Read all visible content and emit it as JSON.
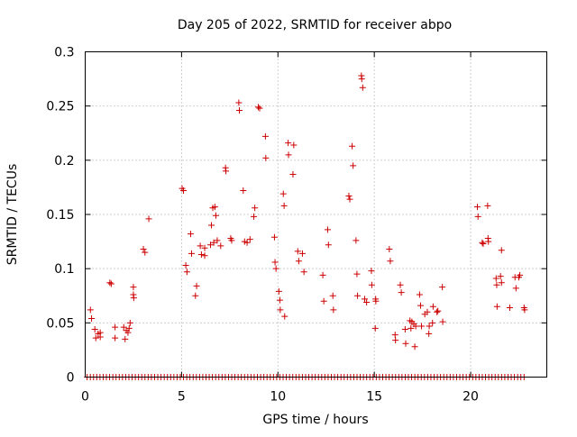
{
  "chart_data": {
    "type": "scatter",
    "title": "Day 205 of 2022, SRMTID for receiver abpo",
    "xlabel": "GPS time / hours",
    "ylabel": "SRMTID / TECUs",
    "xlim": [
      0,
      23.95
    ],
    "ylim": [
      0,
      0.3
    ],
    "xticks": [
      0,
      5,
      10,
      15,
      20
    ],
    "xtick_labels": [
      "0",
      "5",
      "10",
      "15",
      "20"
    ],
    "yticks": [
      0,
      0.05,
      0.1,
      0.15,
      0.2,
      0.25,
      0.3
    ],
    "ytick_labels": [
      "0",
      "0.05",
      "0.1",
      "0.15",
      "0.2",
      "0.25",
      "0.3"
    ],
    "grid": true,
    "marker": "+",
    "series": [
      {
        "name": "SRMTID",
        "color": "#cc0000",
        "points": [
          [
            0.27,
            0.062
          ],
          [
            0.33,
            0.054
          ],
          [
            0.5,
            0.044
          ],
          [
            0.55,
            0.036
          ],
          [
            0.67,
            0.04
          ],
          [
            0.78,
            0.041
          ],
          [
            0.78,
            0.037
          ],
          [
            1.28,
            0.087
          ],
          [
            1.35,
            0.086
          ],
          [
            1.55,
            0.046
          ],
          [
            1.55,
            0.036
          ],
          [
            2.0,
            0.046
          ],
          [
            2.07,
            0.035
          ],
          [
            2.13,
            0.043
          ],
          [
            2.22,
            0.041
          ],
          [
            2.28,
            0.045
          ],
          [
            2.33,
            0.05
          ],
          [
            2.5,
            0.083
          ],
          [
            2.5,
            0.076
          ],
          [
            2.52,
            0.073
          ],
          [
            3.02,
            0.118
          ],
          [
            3.1,
            0.115
          ],
          [
            3.3,
            0.146
          ],
          [
            5.03,
            0.174
          ],
          [
            5.1,
            0.172
          ],
          [
            5.22,
            0.103
          ],
          [
            5.28,
            0.097
          ],
          [
            5.47,
            0.132
          ],
          [
            5.52,
            0.114
          ],
          [
            5.72,
            0.075
          ],
          [
            5.78,
            0.084
          ],
          [
            5.97,
            0.121
          ],
          [
            6.03,
            0.113
          ],
          [
            6.2,
            0.112
          ],
          [
            6.2,
            0.119
          ],
          [
            6.5,
            0.122
          ],
          [
            6.55,
            0.14
          ],
          [
            6.62,
            0.156
          ],
          [
            6.67,
            0.124
          ],
          [
            6.73,
            0.157
          ],
          [
            6.78,
            0.149
          ],
          [
            6.85,
            0.126
          ],
          [
            7.03,
            0.121
          ],
          [
            7.28,
            0.193
          ],
          [
            7.3,
            0.19
          ],
          [
            7.55,
            0.128
          ],
          [
            7.6,
            0.126
          ],
          [
            7.97,
            0.253
          ],
          [
            8.0,
            0.246
          ],
          [
            8.2,
            0.172
          ],
          [
            8.27,
            0.125
          ],
          [
            8.4,
            0.124
          ],
          [
            8.55,
            0.127
          ],
          [
            8.75,
            0.148
          ],
          [
            8.8,
            0.156
          ],
          [
            8.98,
            0.249
          ],
          [
            9.05,
            0.248
          ],
          [
            9.35,
            0.222
          ],
          [
            9.37,
            0.202
          ],
          [
            9.82,
            0.129
          ],
          [
            9.85,
            0.106
          ],
          [
            9.9,
            0.1
          ],
          [
            10.05,
            0.079
          ],
          [
            10.1,
            0.071
          ],
          [
            10.12,
            0.062
          ],
          [
            10.28,
            0.169
          ],
          [
            10.32,
            0.158
          ],
          [
            10.35,
            0.056
          ],
          [
            10.53,
            0.216
          ],
          [
            10.55,
            0.205
          ],
          [
            10.78,
            0.187
          ],
          [
            10.82,
            0.214
          ],
          [
            11.03,
            0.116
          ],
          [
            11.08,
            0.107
          ],
          [
            11.27,
            0.114
          ],
          [
            11.35,
            0.097
          ],
          [
            12.33,
            0.094
          ],
          [
            12.38,
            0.07
          ],
          [
            12.58,
            0.136
          ],
          [
            12.62,
            0.122
          ],
          [
            12.85,
            0.075
          ],
          [
            12.88,
            0.062
          ],
          [
            13.68,
            0.167
          ],
          [
            13.73,
            0.164
          ],
          [
            13.85,
            0.213
          ],
          [
            13.9,
            0.195
          ],
          [
            14.05,
            0.126
          ],
          [
            14.1,
            0.095
          ],
          [
            14.13,
            0.075
          ],
          [
            14.33,
            0.278
          ],
          [
            14.35,
            0.275
          ],
          [
            14.4,
            0.267
          ],
          [
            14.5,
            0.072
          ],
          [
            14.6,
            0.069
          ],
          [
            14.85,
            0.098
          ],
          [
            14.87,
            0.085
          ],
          [
            15.07,
            0.072
          ],
          [
            15.08,
            0.07
          ],
          [
            15.05,
            0.045
          ],
          [
            15.78,
            0.118
          ],
          [
            15.83,
            0.107
          ],
          [
            16.08,
            0.039
          ],
          [
            16.1,
            0.034
          ],
          [
            16.35,
            0.085
          ],
          [
            16.4,
            0.078
          ],
          [
            16.6,
            0.044
          ],
          [
            16.63,
            0.031
          ],
          [
            16.85,
            0.052
          ],
          [
            16.9,
            0.045
          ],
          [
            16.95,
            0.051
          ],
          [
            17.05,
            0.049
          ],
          [
            17.1,
            0.028
          ],
          [
            17.15,
            0.047
          ],
          [
            17.35,
            0.076
          ],
          [
            17.4,
            0.066
          ],
          [
            17.45,
            0.047
          ],
          [
            17.62,
            0.058
          ],
          [
            17.75,
            0.06
          ],
          [
            17.83,
            0.04
          ],
          [
            17.85,
            0.047
          ],
          [
            18.02,
            0.05
          ],
          [
            18.05,
            0.065
          ],
          [
            18.25,
            0.06
          ],
          [
            18.3,
            0.061
          ],
          [
            18.53,
            0.083
          ],
          [
            18.55,
            0.051
          ],
          [
            20.35,
            0.157
          ],
          [
            20.38,
            0.148
          ],
          [
            20.6,
            0.124
          ],
          [
            20.65,
            0.123
          ],
          [
            20.88,
            0.158
          ],
          [
            20.9,
            0.128
          ],
          [
            20.92,
            0.125
          ],
          [
            21.32,
            0.091
          ],
          [
            21.35,
            0.085
          ],
          [
            21.37,
            0.065
          ],
          [
            21.55,
            0.093
          ],
          [
            21.6,
            0.087
          ],
          [
            21.6,
            0.117
          ],
          [
            22.03,
            0.064
          ],
          [
            22.3,
            0.092
          ],
          [
            22.35,
            0.082
          ],
          [
            22.5,
            0.092
          ],
          [
            22.55,
            0.094
          ],
          [
            22.77,
            0.064
          ],
          [
            22.8,
            0.062
          ]
        ],
        "zero_points": {
          "value": 0,
          "x_start": 0.1,
          "x_end": 22.8,
          "x_step": 0.1667
        }
      }
    ]
  }
}
